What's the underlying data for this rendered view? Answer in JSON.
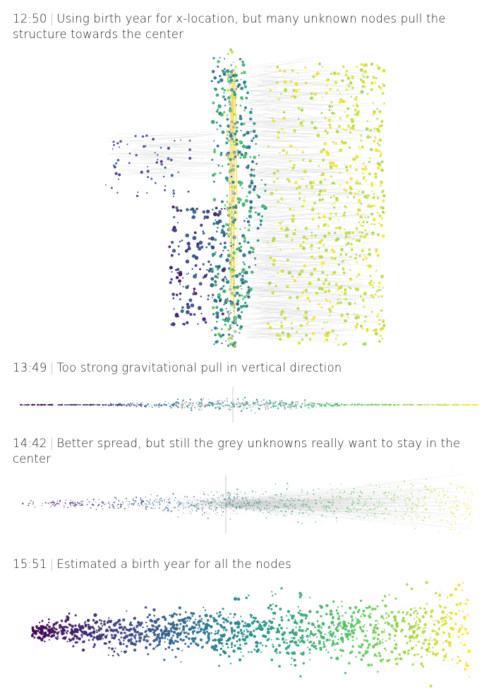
{
  "panels": [
    {
      "time": "12:50",
      "separator": "|",
      "caption": "Using birth year for x-location, but many unknown nodes pull the structure towards  the center"
    },
    {
      "time": "13:49",
      "separator": "|",
      "caption": "Too strong gravitational pull in vertical direction"
    },
    {
      "time": "14:42",
      "separator": "|",
      "caption": "Better spread, but still the grey unknowns really want to stay in the center"
    },
    {
      "time": "15:51",
      "separator": "|",
      "caption": "Estimated a birth year for all the nodes"
    }
  ],
  "colors": {
    "colormap": [
      "#440154",
      "#3b528b",
      "#21918c",
      "#5ec962",
      "#fde725"
    ],
    "unknown": "#b0b0b0",
    "edge": "#cfcfcf"
  }
}
